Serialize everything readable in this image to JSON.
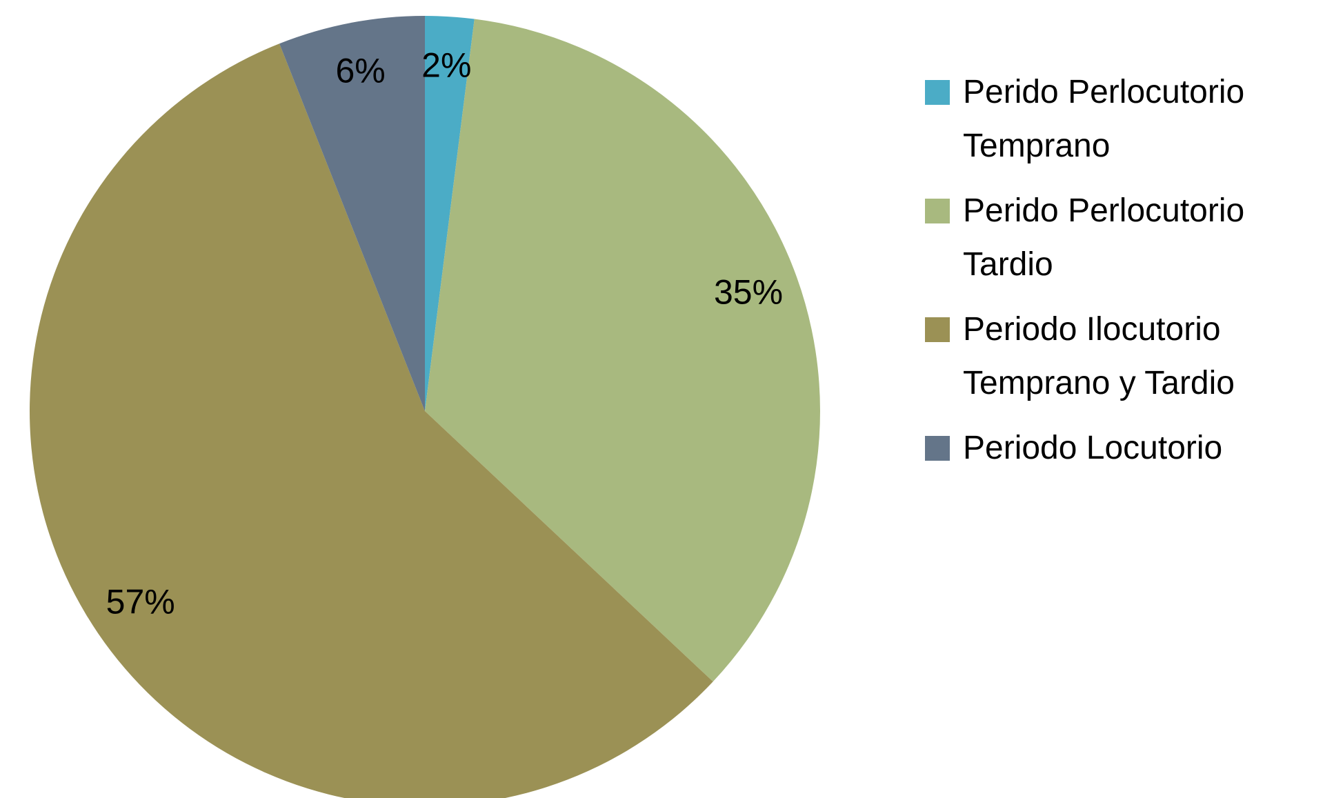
{
  "chart_data": {
    "type": "pie",
    "categories": [
      "Perido Perlocutorio Temprano",
      "Perido Perlocutorio Tardio",
      "Periodo Ilocutorio Temprano y Tardio",
      "Periodo Locutorio"
    ],
    "values": [
      2,
      35,
      57,
      6
    ],
    "value_labels": [
      "2%",
      "35%",
      "57%",
      "6%"
    ],
    "colors": [
      "#4bacc6",
      "#a8b97f",
      "#9b9155",
      "#647589"
    ],
    "legend": "right"
  }
}
